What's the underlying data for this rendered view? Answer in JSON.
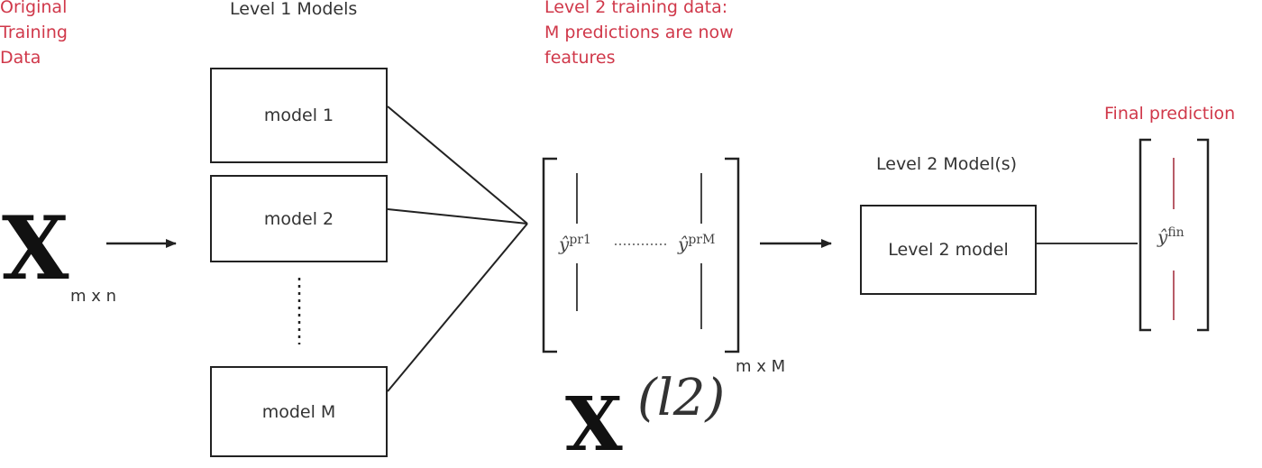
{
  "headers": {
    "original": "Original\nTraining\nData",
    "level1": "Level 1 Models",
    "level2_data": "Level 2 training data:\nM predictions are now\nfeatures",
    "level2_models": "Level 2 Model(s)",
    "final": "Final prediction"
  },
  "input": {
    "symbol": "X",
    "dims": "m x n"
  },
  "models": [
    "model 1",
    "model 2",
    "model M"
  ],
  "matrix": {
    "col_first_base": "ŷ",
    "col_first_sup": "pr1",
    "col_last_base": "ŷ",
    "col_last_sup": "prM",
    "dims": "m x M",
    "symbol": "X",
    "superscript": "(l2)"
  },
  "level2_model": "Level 2 model",
  "final_output": {
    "base": "ŷ",
    "sup": "fin"
  },
  "colors": {
    "accent": "#d0384a",
    "ink": "#222222"
  }
}
